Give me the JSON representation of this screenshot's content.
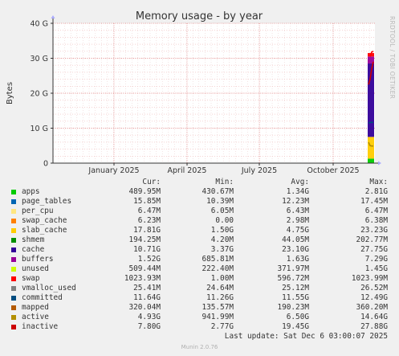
{
  "chart_data": {
    "type": "area",
    "title": "Memory usage - by year",
    "ylabel": "Bytes",
    "ylim": [
      0,
      40
    ],
    "y_ticks": [
      "0",
      "10 G",
      "20 G",
      "30 G",
      "40 G"
    ],
    "x_ticks": [
      "January 2025",
      "April 2025",
      "July 2025",
      "October 2025"
    ],
    "grid": true,
    "note": "",
    "series": [
      {
        "name": "apps",
        "color": "#00cc00",
        "cur": "489.95M",
        "min": "430.67M",
        "avg": "1.34G",
        "max": "2.81G"
      },
      {
        "name": "page_tables",
        "color": "#0066b3",
        "cur": "15.85M",
        "min": "10.39M",
        "avg": "12.23M",
        "max": "17.45M"
      },
      {
        "name": "per_cpu",
        "color": "#ffe680",
        "cur": "6.47M",
        "min": "6.05M",
        "avg": "6.43M",
        "max": "6.47M"
      },
      {
        "name": "swap_cache",
        "color": "#ff8000",
        "cur": "6.23M",
        "min": "0.00",
        "avg": "2.98M",
        "max": "6.38M"
      },
      {
        "name": "slab_cache",
        "color": "#ffcc00",
        "cur": "17.81G",
        "min": "1.50G",
        "avg": "4.75G",
        "max": "23.23G"
      },
      {
        "name": "shmem",
        "color": "#008f00",
        "cur": "194.25M",
        "min": "4.20M",
        "avg": "44.05M",
        "max": "202.77M"
      },
      {
        "name": "cache",
        "color": "#330099",
        "cur": "10.71G",
        "min": "3.37G",
        "avg": "23.10G",
        "max": "27.75G"
      },
      {
        "name": "buffers",
        "color": "#990099",
        "cur": "1.52G",
        "min": "685.81M",
        "avg": "1.63G",
        "max": "7.29G"
      },
      {
        "name": "unused",
        "color": "#ccff00",
        "cur": "509.44M",
        "min": "222.40M",
        "avg": "371.97M",
        "max": "1.45G"
      },
      {
        "name": "swap",
        "color": "#ff0000",
        "cur": "1023.93M",
        "min": "1.00M",
        "avg": "596.72M",
        "max": "1023.99M"
      },
      {
        "name": "vmalloc_used",
        "color": "#808080",
        "cur": "25.41M",
        "min": "24.64M",
        "avg": "25.12M",
        "max": "26.52M"
      },
      {
        "name": "committed",
        "color": "#004d80",
        "cur": "11.64G",
        "min": "11.26G",
        "avg": "11.55G",
        "max": "12.49G"
      },
      {
        "name": "mapped",
        "color": "#b35a00",
        "cur": "320.04M",
        "min": "135.57M",
        "avg": "190.23M",
        "max": "360.20M"
      },
      {
        "name": "active",
        "color": "#b38f00",
        "cur": "4.93G",
        "min": "941.99M",
        "avg": "6.50G",
        "max": "14.64G"
      },
      {
        "name": "inactive",
        "color": "#cc0000",
        "cur": "7.80G",
        "min": "2.77G",
        "avg": "19.45G",
        "max": "27.88G"
      }
    ]
  },
  "legend_headers": {
    "cur": "Cur:",
    "min": "Min:",
    "avg": "Avg:",
    "max": "Max:"
  },
  "last_update": "Last update: Sat Dec  6 03:00:07 2025",
  "rrd_credit": "RRDTOOL / TOBI OETIKER",
  "footer_credit": "Munin 2.0.76"
}
